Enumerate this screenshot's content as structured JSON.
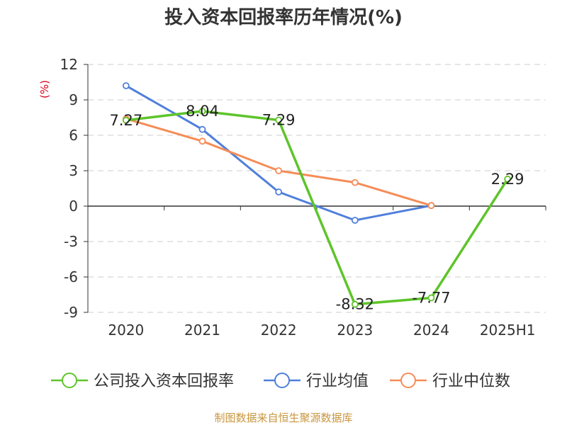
{
  "chart_data": {
    "type": "line",
    "title": "投入资本回报率历年情况(%)",
    "ylabel": "(%)",
    "categories": [
      "2020",
      "2021",
      "2022",
      "2023",
      "2024",
      "2025H1"
    ],
    "yticks": [
      "12",
      "9",
      "6",
      "3",
      "0",
      "-3",
      "-6",
      "-9"
    ],
    "ylim": [
      -9,
      12
    ],
    "grid": true,
    "legend_position": "bottom",
    "series": [
      {
        "name": "公司投入资本回报率",
        "color": "#5ec42a",
        "values": [
          7.27,
          8.04,
          7.29,
          -8.32,
          -7.77,
          2.29
        ],
        "labels": [
          "7.27",
          "8.04",
          "7.29",
          "-8.32",
          "-7.77",
          "2.29"
        ]
      },
      {
        "name": "行业均值",
        "color": "#4f7fdc",
        "values": [
          10.2,
          6.5,
          1.2,
          -1.2,
          0.05,
          null
        ]
      },
      {
        "name": "行业中位数",
        "color": "#f58c57",
        "values": [
          7.4,
          5.5,
          3.0,
          2.0,
          0.05,
          null
        ]
      }
    ]
  },
  "footer": {
    "source": "制图数据来自恒生聚源数据库"
  }
}
